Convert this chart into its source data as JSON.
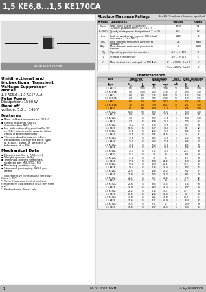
{
  "title": "1,5 KE6,8...1,5 KE170CA",
  "abs_max_ratings": {
    "title": "Absolute Maximum Ratings",
    "ta_note": "Tₐ = 25 °C, unless otherwise specified",
    "columns": [
      "Symbol",
      "Conditions",
      "Values",
      "Units"
    ],
    "rows": [
      [
        "Pₚₚₑₐₖ",
        "Peak pulse power dissipation\n10/1000 μs waveform ¹) Tₐ = 25 °C",
        "1500",
        "W"
      ],
      [
        "Pₐv(DC)",
        "Steady state power dissipation²), Tₐ = 25\n°C",
        "6.5",
        "W"
      ],
      [
        "Iₘₚₒₖ",
        "Peak forward surge current, 60 Hz half\nsine wave ¹) Tₐ = 25 °C",
        "200",
        "A"
      ],
      [
        "Rθjₐ",
        "Max. thermal resistance junction to\nambient ²)",
        "25",
        "K/W"
      ],
      [
        "Rθjc",
        "Max. thermal resistance junction to\nterminal",
        "8",
        "K/W"
      ],
      [
        "T_j",
        "Operating junction temperature",
        "-50 ... + 175",
        "°C"
      ],
      [
        "Tₛ",
        "Storage temperature",
        "-50 ... + 175",
        "°C"
      ],
      [
        "Vₜ",
        "Max. instant fuse voltage Iₜ = 100 A ³)",
        "Vₘₐₖ ≤200V, Vⱼ≤3.5",
        "V"
      ],
      [
        "",
        "",
        "Vₘₐₖ >200V, Vⱼ≤4.0",
        "V"
      ]
    ]
  },
  "characteristics": {
    "title": "Characteristics",
    "rows": [
      [
        "1.5 KE6.8",
        "5.5",
        "1000",
        "6.12",
        "7.48",
        "10",
        "10.8",
        "139"
      ],
      [
        "1.5 KE6.8A",
        "5.8",
        "1000",
        "6.45",
        "7.14",
        "10",
        "10.5",
        "150"
      ],
      [
        "1.5 KE7.5",
        "6.0",
        "500",
        "6.75",
        "8.25",
        "10",
        "11.3",
        "134"
      ],
      [
        "1.5 KE7.5A",
        "6.4",
        "500",
        "7.13",
        "7.88",
        "10",
        "11.3",
        "133"
      ],
      [
        "1.5 KE8.2",
        "6.6",
        "200",
        "7.38",
        "9.02",
        "10",
        "12.5",
        "126"
      ],
      [
        "1.5 KE8.2A",
        "7.0",
        "200",
        "7.79",
        "8.61",
        "10",
        "12.1",
        "130"
      ],
      [
        "1.5 KE10",
        "8.1",
        "50",
        "9.00",
        "11.0",
        "1",
        "14.5",
        "108"
      ],
      [
        "1.5 KE10A",
        "8.55",
        "50",
        "9.50",
        "10.5",
        "1",
        "15.0",
        "100"
      ],
      [
        "1.5 KE11",
        "8.9",
        "5",
        "9.9",
        "12.1",
        "1",
        "16.2",
        "97"
      ],
      [
        "1.5 KE11A",
        "9.4",
        "5",
        "10.5",
        "11.6",
        "1",
        "15.8",
        "100"
      ],
      [
        "1.5 KE12",
        "9.7",
        "5",
        "10.8",
        "13.2",
        "1",
        "17.3",
        "91"
      ],
      [
        "1.5 KE12A",
        "10.2",
        "5",
        "11.4",
        "12.6",
        "1",
        "16.7",
        "94"
      ],
      [
        "1.5 KE13",
        "10.5",
        "5",
        "11.7",
        "14.3",
        "1",
        "19",
        "82"
      ],
      [
        "1.5 KE13A",
        "11.1",
        "5",
        "12.4",
        "13.7",
        "1",
        "18.2",
        "86"
      ],
      [
        "1.5 KE15",
        "12.1",
        "5",
        "13.5",
        "16.5",
        "1",
        "22",
        "71"
      ],
      [
        "1.5 KE15A",
        "12.8",
        "5",
        "14.3",
        "15.8",
        "1",
        "21.2",
        "74"
      ],
      [
        "1.5 KE16",
        "12.9",
        "5",
        "14.4",
        "17.6",
        "1",
        "23.5",
        "67"
      ],
      [
        "1.5 KE16A",
        "13.6",
        "5",
        "15.2",
        "16.8",
        "1",
        "22.5",
        "70"
      ],
      [
        "1.5 KE18",
        "14.5",
        "5",
        "16.2",
        "19.8",
        "1",
        "28.5",
        "59"
      ],
      [
        "1.5 KE18A",
        "15.3",
        "5",
        "17.1",
        "18.9",
        "1",
        "26.5",
        "60"
      ],
      [
        "1.5 KE20",
        "16.2",
        "5",
        "18",
        "22",
        "1",
        "28.1",
        "54"
      ],
      [
        "1.5 KE20A",
        "17.1",
        "5",
        "19",
        "21",
        "1",
        "27.7",
        "58"
      ],
      [
        "1.5 KE22",
        "17.8",
        "5",
        "19.8",
        "24.2",
        "1",
        "31.9",
        "49"
      ],
      [
        "1.5 KE22A",
        "18.8",
        "5",
        "20.9",
        "23.1",
        "1",
        "30.6",
        "51"
      ],
      [
        "1.5 KE24",
        "19.4",
        "5",
        "21.6",
        "26.4",
        "1",
        "34.7",
        "45"
      ],
      [
        "1.5 KE24A",
        "20.5",
        "5",
        "22.8",
        "25.2",
        "1",
        "33.2",
        "47"
      ],
      [
        "1.5 KE27",
        "21.8",
        "5",
        "24.3",
        "29.7",
        "1",
        "39.1",
        "40"
      ],
      [
        "1.5 KE27A",
        "23.1",
        "5",
        "25.7",
        "28.4",
        "1",
        "37.5",
        "42"
      ],
      [
        "1.5 KE30",
        "24.3",
        "5",
        "27",
        "33",
        "1",
        "43.5",
        "36"
      ],
      [
        "1.5 KE30A",
        "25.6",
        "5",
        "28.5",
        "31.5",
        "1",
        "41.4",
        "38"
      ],
      [
        "1.5 KE33",
        "26.8",
        "5",
        "29.7",
        "36.3",
        "1",
        "47.7",
        "33"
      ],
      [
        "1.5 KE33A",
        "28.2",
        "5",
        "31.4",
        "34.7",
        "1",
        "45.7",
        "34"
      ],
      [
        "1.5 KE36",
        "29.1",
        "5",
        "32.4",
        "39.6",
        "1",
        "52",
        "30"
      ],
      [
        "1.5 KE36A",
        "30.8",
        "5",
        "34.2",
        "37.8",
        "1",
        "49.9",
        "31"
      ],
      [
        "1.5 KE39",
        "31.6",
        "5",
        "35.1",
        "42.9",
        "1",
        "56.4",
        "27"
      ],
      [
        "1.5 KE39A",
        "33.3",
        "5",
        "37.1",
        "41",
        "1",
        "53.9",
        "29"
      ],
      [
        "1.5 KE43",
        "34.8",
        "5",
        "38.7",
        "47.3",
        "1",
        "61.9",
        "25"
      ]
    ],
    "highlighted_rows": [
      4,
      5,
      6
    ],
    "highlight_color": "#f5a623"
  },
  "left_panel": {
    "desc_title": "Unidirectional and\nbidirectional Transient\nVoltage Suppressor\ndiodes",
    "desc_sub": "1,5 KE6,8...1,5 KE170CA",
    "pulse_power_label": "Pulse Power",
    "pulse_power_value": "Dissipation: 1500 W",
    "standoff_label": "Stand-off",
    "standoff_value": "voltage: 5,5 ... 145 V",
    "features_title": "Features",
    "features": [
      "Max. solder temperature: 260°C",
      "Plastic material has UL\nclassification 94V-0",
      "For bidirectional types (suffix ‘C’\nor ‘CA’), electrical characteristics\napply in both directions.",
      "The standard tolerance of the\nbreakdown voltage for each type\nis ± 10%. Suffix ‘A’ denotes a\ntolerance of ± 5%."
    ],
    "mech_title": "Mechanical Data",
    "mech": [
      "Plastic case 5,4 x 7,5 [mm]",
      "Weight approx.: 1,4 g",
      "Terminals: plated terminals\nsoldered per MIL-STD-750",
      "Mounting position: any",
      "Standard packaging: 1250 per\nammo"
    ],
    "notes": [
      "¹) Non-repetitive current pulse see curve\n(time = 10ⁿ)",
      "²) Valid, if leads are kept at ambient\ntemperature at a distance of 10 mm from\ncase",
      "³) Unidirectional diodes only"
    ]
  }
}
